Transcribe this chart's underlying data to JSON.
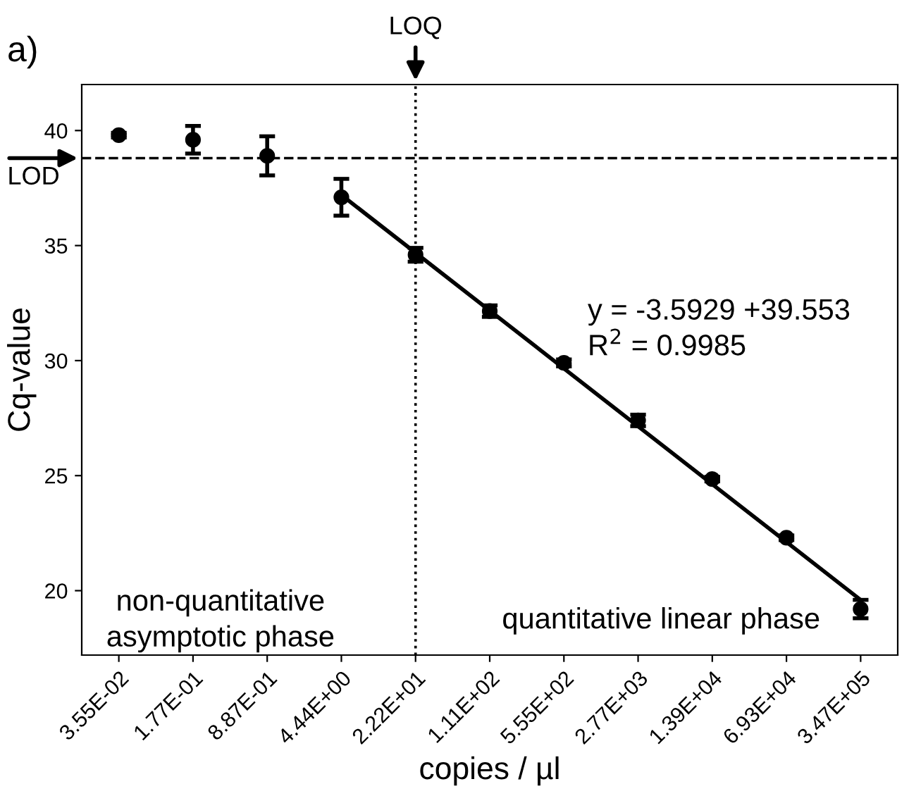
{
  "chart_data": {
    "type": "scatter",
    "xlabel": "copies / µl",
    "ylabel": "Cq-value",
    "categories": [
      "3.55E-02",
      "1.77E-01",
      "8.87E-01",
      "4.44E+00",
      "2.22E+01",
      "1.11E+02",
      "5.55E+02",
      "2.77E+03",
      "1.39E+04",
      "6.93E+04",
      "3.47E+05"
    ],
    "series": [
      {
        "type": "scatter",
        "color": "#000000",
        "values": [
          39.8,
          39.6,
          38.9,
          37.1,
          34.6,
          32.15,
          29.9,
          27.4,
          24.85,
          22.3,
          19.2
        ],
        "errors": [
          0.1,
          0.6,
          0.85,
          0.8,
          0.3,
          0.25,
          0.15,
          0.25,
          0.1,
          0.1,
          0.4
        ]
      },
      {
        "type": "line",
        "marker": "none",
        "color": "#000000",
        "x": [
          "4.44E+00",
          "3.47E+05"
        ],
        "values": [
          37.2,
          19.6
        ]
      }
    ],
    "ylim": [
      17.2,
      42.0
    ],
    "yticks": [
      20,
      25,
      30,
      35,
      40
    ],
    "ref_lines": [
      {
        "axis": "y",
        "value": 38.8,
        "label": "LOD",
        "line_style": "dashed"
      },
      {
        "axis": "x",
        "value": "2.22E+01",
        "label": "LOQ",
        "line_style": "dotted"
      }
    ],
    "annotations": [
      "a)",
      "y = -3.5929 +39.553\nR$^{2}$ = 0.9985",
      "non-quantitative\nasymptotic phase",
      "quantitative linear phase"
    ],
    "marker": "circle",
    "grid": false,
    "legend": false
  }
}
